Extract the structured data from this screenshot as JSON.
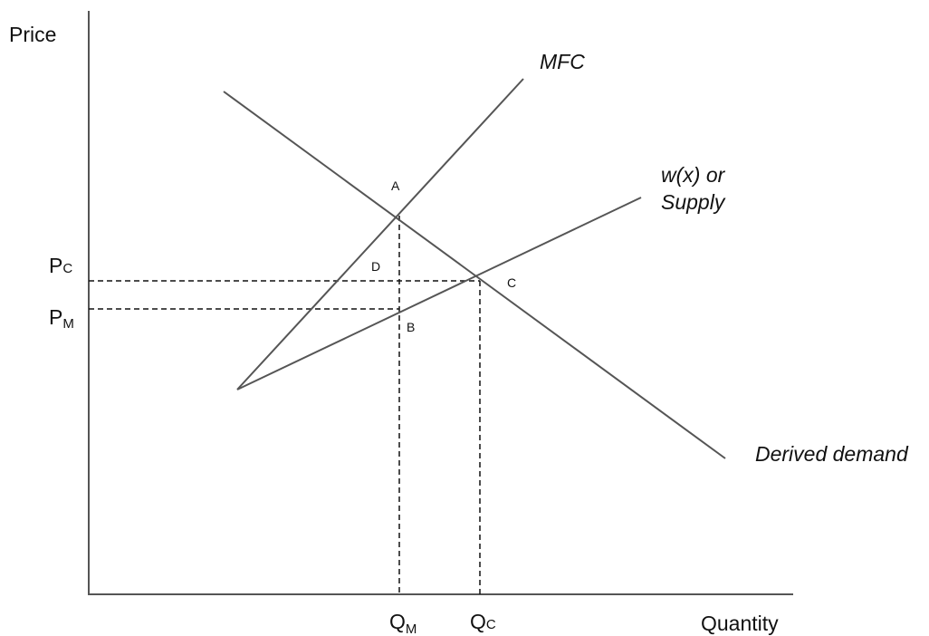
{
  "axes": {
    "y_title": "Price",
    "x_title": "Quantity"
  },
  "curves": {
    "mfc": "MFC",
    "supply_line1": "w(x) or",
    "supply_line2": "Supply",
    "demand": "Derived demand"
  },
  "points": {
    "a": "A",
    "b": "B",
    "c": "C",
    "d": "D"
  },
  "price_ticks": {
    "pc_main": "P",
    "pc_sub": "C",
    "pm_main": "P",
    "pm_sub": "M"
  },
  "quantity_ticks": {
    "qm_main": "Q",
    "qm_sub": "M",
    "qc_main": "Q",
    "qc_sub": "C"
  },
  "colors": {
    "lines": "#555555",
    "guides": "#111111",
    "text": "#111111"
  }
}
